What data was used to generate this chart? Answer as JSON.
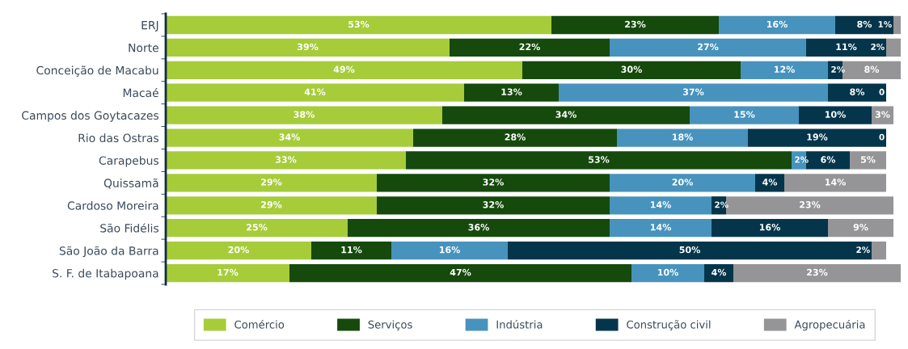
{
  "chart_data": {
    "type": "bar",
    "orientation": "horizontal",
    "stacked": true,
    "legend": "bottom",
    "grid": false,
    "tick_labels": "y",
    "xlim": [
      0,
      101
    ],
    "categories": [
      "ERJ",
      "Norte",
      "Conceição de Macabu",
      "Macaé",
      "Campos dos Goytacazes",
      "Rio das Ostras",
      "Carapebus",
      "Quissamã",
      "Cardoso Moreira",
      "São Fidélis",
      "São João da Barra",
      "S. F. de Itabapoana"
    ],
    "series": [
      {
        "name": "Comércio",
        "color": "#a6cc3a",
        "values": [
          53,
          39,
          49,
          41,
          38,
          34,
          33,
          29,
          29,
          25,
          20,
          17
        ],
        "value_labels": [
          "53%",
          "39%",
          "49%",
          "41%",
          "38%",
          "34%",
          "33%",
          "29%",
          "29%",
          "25%",
          "20%",
          "17%"
        ]
      },
      {
        "name": "Serviços",
        "color": "#154a0c",
        "values": [
          23,
          22,
          30,
          13,
          34,
          28,
          53,
          32,
          32,
          36,
          11,
          47
        ],
        "value_labels": [
          "23%",
          "22%",
          "30%",
          "13%",
          "34%",
          "28%",
          "53%",
          "32%",
          "32%",
          "36%",
          "11%",
          "47%"
        ]
      },
      {
        "name": "Indústria",
        "color": "#4793bd",
        "values": [
          16,
          27,
          12,
          37,
          15,
          18,
          2,
          20,
          14,
          14,
          16,
          10
        ],
        "value_labels": [
          "16%",
          "27%",
          "12%",
          "37%",
          "15%",
          "18%",
          "2%",
          "20%",
          "14%",
          "14%",
          "16%",
          "10%"
        ]
      },
      {
        "name": "Construção civil",
        "color": "#05354b",
        "values": [
          8,
          11,
          2,
          8,
          10,
          19,
          6,
          4,
          2,
          16,
          50,
          4
        ],
        "value_labels": [
          "8%",
          "11%",
          "2%",
          "8%",
          "10%",
          "19%",
          "6%",
          "4%",
          "2%",
          "16%",
          "50%",
          "4%"
        ]
      },
      {
        "name": "Agropecuária",
        "color": "#959597",
        "values": [
          1,
          2,
          8,
          0,
          3,
          0,
          5,
          14,
          23,
          9,
          2,
          23
        ],
        "value_labels": [
          "1%",
          "2%",
          "8%",
          "0",
          "3%",
          "0",
          "5%",
          "14%",
          "23%",
          "9%",
          "2%",
          "23%"
        ]
      }
    ]
  }
}
